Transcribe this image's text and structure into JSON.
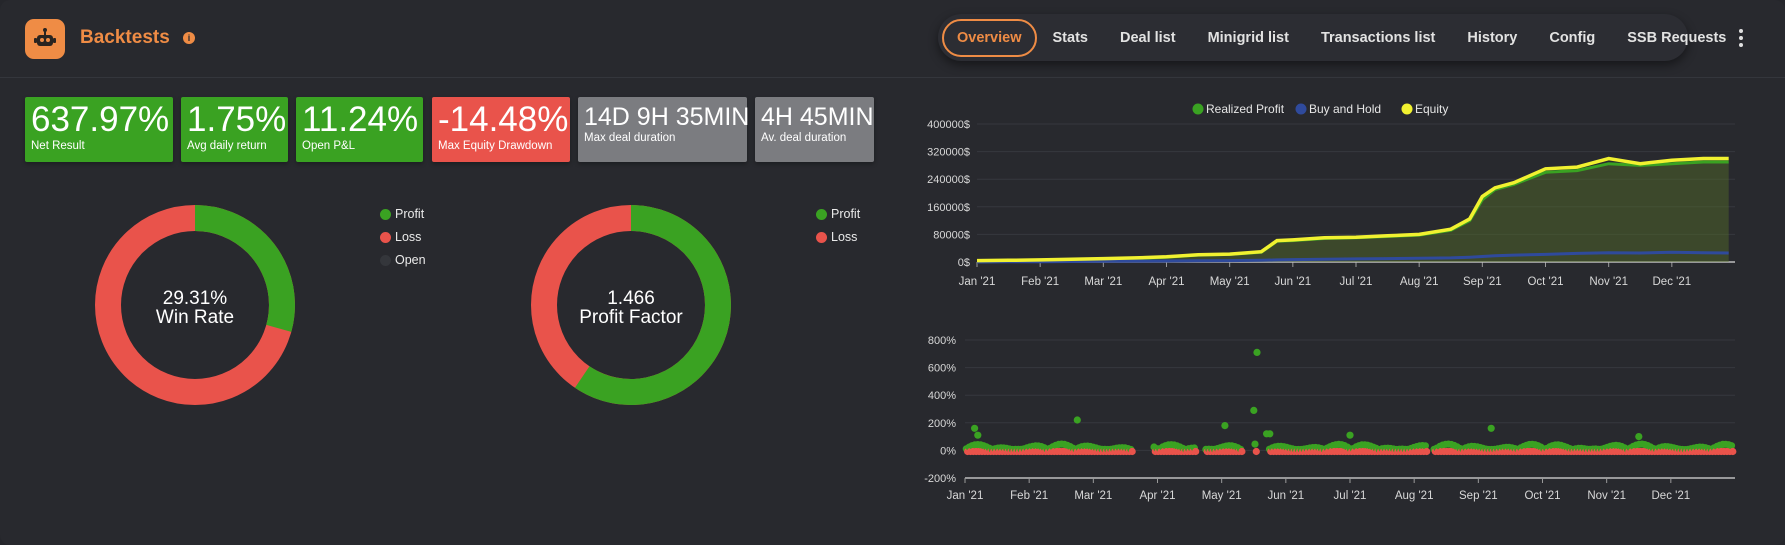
{
  "header": {
    "title": "Backtests",
    "tabs": [
      "Overview",
      "Stats",
      "Deal list",
      "Minigrid list",
      "Transactions list",
      "History",
      "Config",
      "SSB Requests"
    ],
    "active_tab": "Overview"
  },
  "metrics": [
    {
      "value": "637.97%",
      "label": "Net Result",
      "color": "#3aa222"
    },
    {
      "value": "1.75%",
      "label": "Avg daily return",
      "color": "#3aa222"
    },
    {
      "value": "11.24%",
      "label": "Open P&L",
      "color": "#3aa222"
    },
    {
      "value": "-14.48%",
      "label": "Max Equity Drawdown",
      "color": "#e9534b"
    },
    {
      "value": "14D 9H 35MIN",
      "label": "Max deal duration",
      "color": "#7b7c80"
    },
    {
      "value": "4H 45MIN",
      "label": "Av. deal duration",
      "color": "#7b7c80"
    }
  ],
  "win_rate": {
    "value": "29.31%",
    "label": "Win Rate",
    "legend": [
      "Profit",
      "Loss",
      "Open"
    ],
    "profit_fraction": 0.2931
  },
  "profit_factor": {
    "value": "1.466",
    "label": "Profit Factor",
    "legend": [
      "Profit",
      "Loss"
    ],
    "profit_fraction": 0.5945
  },
  "colors": {
    "profit": "#3aa222",
    "loss": "#e9534b",
    "open": "#34363b",
    "buy_hold": "#2f4a9c",
    "equity": "#f1f130",
    "accent": "#ef8c45"
  },
  "chart_data": [
    {
      "type": "line",
      "legend": [
        "Realized Profit",
        "Buy and Hold",
        "Equity"
      ],
      "y_ticks": [
        "400000$",
        "320000$",
        "240000$",
        "160000$",
        "80000$",
        "0$"
      ],
      "ylim": [
        0,
        400000
      ],
      "x_ticks": [
        "Jan '21",
        "Feb '21",
        "Mar '21",
        "Apr '21",
        "May '21",
        "Jun '21",
        "Jul '21",
        "Aug '21",
        "Sep '21",
        "Oct '21",
        "Nov '21",
        "Dec '21"
      ],
      "x": [
        0,
        0.5,
        1,
        1.5,
        2,
        2.5,
        3,
        3.5,
        4,
        4.5,
        4.75,
        5,
        5.5,
        6,
        6.5,
        7,
        7.5,
        7.8,
        8,
        8.2,
        8.5,
        9,
        9.5,
        10,
        10.5,
        11,
        11.5,
        11.9
      ],
      "series": [
        {
          "name": "Realized Profit",
          "values": [
            0,
            2000,
            4000,
            6000,
            8000,
            10000,
            14000,
            20000,
            22000,
            28000,
            60000,
            62000,
            68000,
            70000,
            74000,
            78000,
            92000,
            120000,
            180000,
            210000,
            225000,
            260000,
            265000,
            285000,
            280000,
            285000,
            290000,
            290000
          ]
        },
        {
          "name": "Buy and Hold",
          "values": [
            0,
            500,
            1000,
            1500,
            2000,
            2500,
            3000,
            3500,
            4000,
            5000,
            6000,
            7000,
            8000,
            9000,
            10000,
            11000,
            12000,
            14000,
            16000,
            18000,
            20000,
            22000,
            25000,
            27000,
            26000,
            28000,
            27000,
            26000
          ]
        },
        {
          "name": "Equity",
          "values": [
            4000,
            5000,
            6000,
            8000,
            10000,
            12000,
            15000,
            21000,
            23000,
            30000,
            62000,
            64000,
            70000,
            72000,
            76000,
            80000,
            95000,
            125000,
            190000,
            215000,
            230000,
            270000,
            275000,
            300000,
            285000,
            295000,
            300000,
            300000
          ]
        }
      ]
    },
    {
      "type": "scatter",
      "y_ticks": [
        "800%",
        "600%",
        "400%",
        "200%",
        "0%",
        "-200%"
      ],
      "ylim": [
        -200,
        800
      ],
      "x_ticks": [
        "Jan '21",
        "Feb '21",
        "Mar '21",
        "Apr '21",
        "May '21",
        "Jun '21",
        "Jul '21",
        "Aug '21",
        "Sep '21",
        "Oct '21",
        "Nov '21",
        "Dec '21"
      ],
      "series": [
        {
          "name": "Profit",
          "x": [
            0.15,
            0.2,
            1.75,
            4.05,
            4.5,
            4.55,
            4.7,
            4.75,
            6.0,
            8.2,
            10.5
          ],
          "values": [
            160,
            110,
            220,
            180,
            290,
            710,
            120,
            120,
            110,
            160,
            100
          ]
        }
      ]
    }
  ]
}
